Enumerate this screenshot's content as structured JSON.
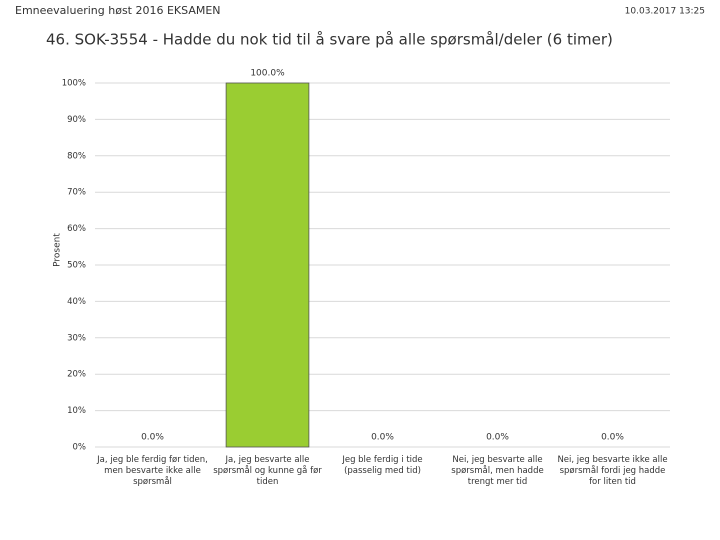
{
  "header": {
    "left": "Emneevaluering høst 2016 EKSAMEN",
    "right": "10.03.2017 13:25"
  },
  "chart_data": {
    "type": "bar",
    "title": "46. SOK-3554 - Hadde du nok tid til å svare på alle spørsmål/deler (6 timer)",
    "y_label": "Prosent",
    "categories": [
      "Ja, jeg ble ferdig før tiden, men besvarte ikke alle spørsmål",
      "Ja, jeg besvarte alle spørsmål og kunne gå før tiden",
      "Jeg ble ferdig i tide (passelig med tid)",
      "Nei, jeg besvarte alle spørsmål, men hadde trengt mer tid",
      "Nei, jeg besvarte ikke alle spørsmål fordi jeg hadde for liten tid"
    ],
    "values": [
      0,
      100,
      0,
      0,
      0
    ],
    "value_labels": [
      "0.0%",
      "100.0%",
      "0.0%",
      "0.0%",
      "0.0%"
    ],
    "color": "#9acd32",
    "ylim": [
      0,
      100
    ],
    "yticks": [
      {
        "value": 0,
        "label": "0%"
      },
      {
        "value": 10,
        "label": "10%"
      },
      {
        "value": 20,
        "label": "20%"
      },
      {
        "value": 30,
        "label": "30%"
      },
      {
        "value": 40,
        "label": "40%"
      },
      {
        "value": 50,
        "label": "50%"
      },
      {
        "value": 60,
        "label": "60%"
      },
      {
        "value": 70,
        "label": "70%"
      },
      {
        "value": 80,
        "label": "80%"
      },
      {
        "value": 90,
        "label": "90%"
      },
      {
        "value": 100,
        "label": "100%"
      }
    ],
    "grid": true
  }
}
